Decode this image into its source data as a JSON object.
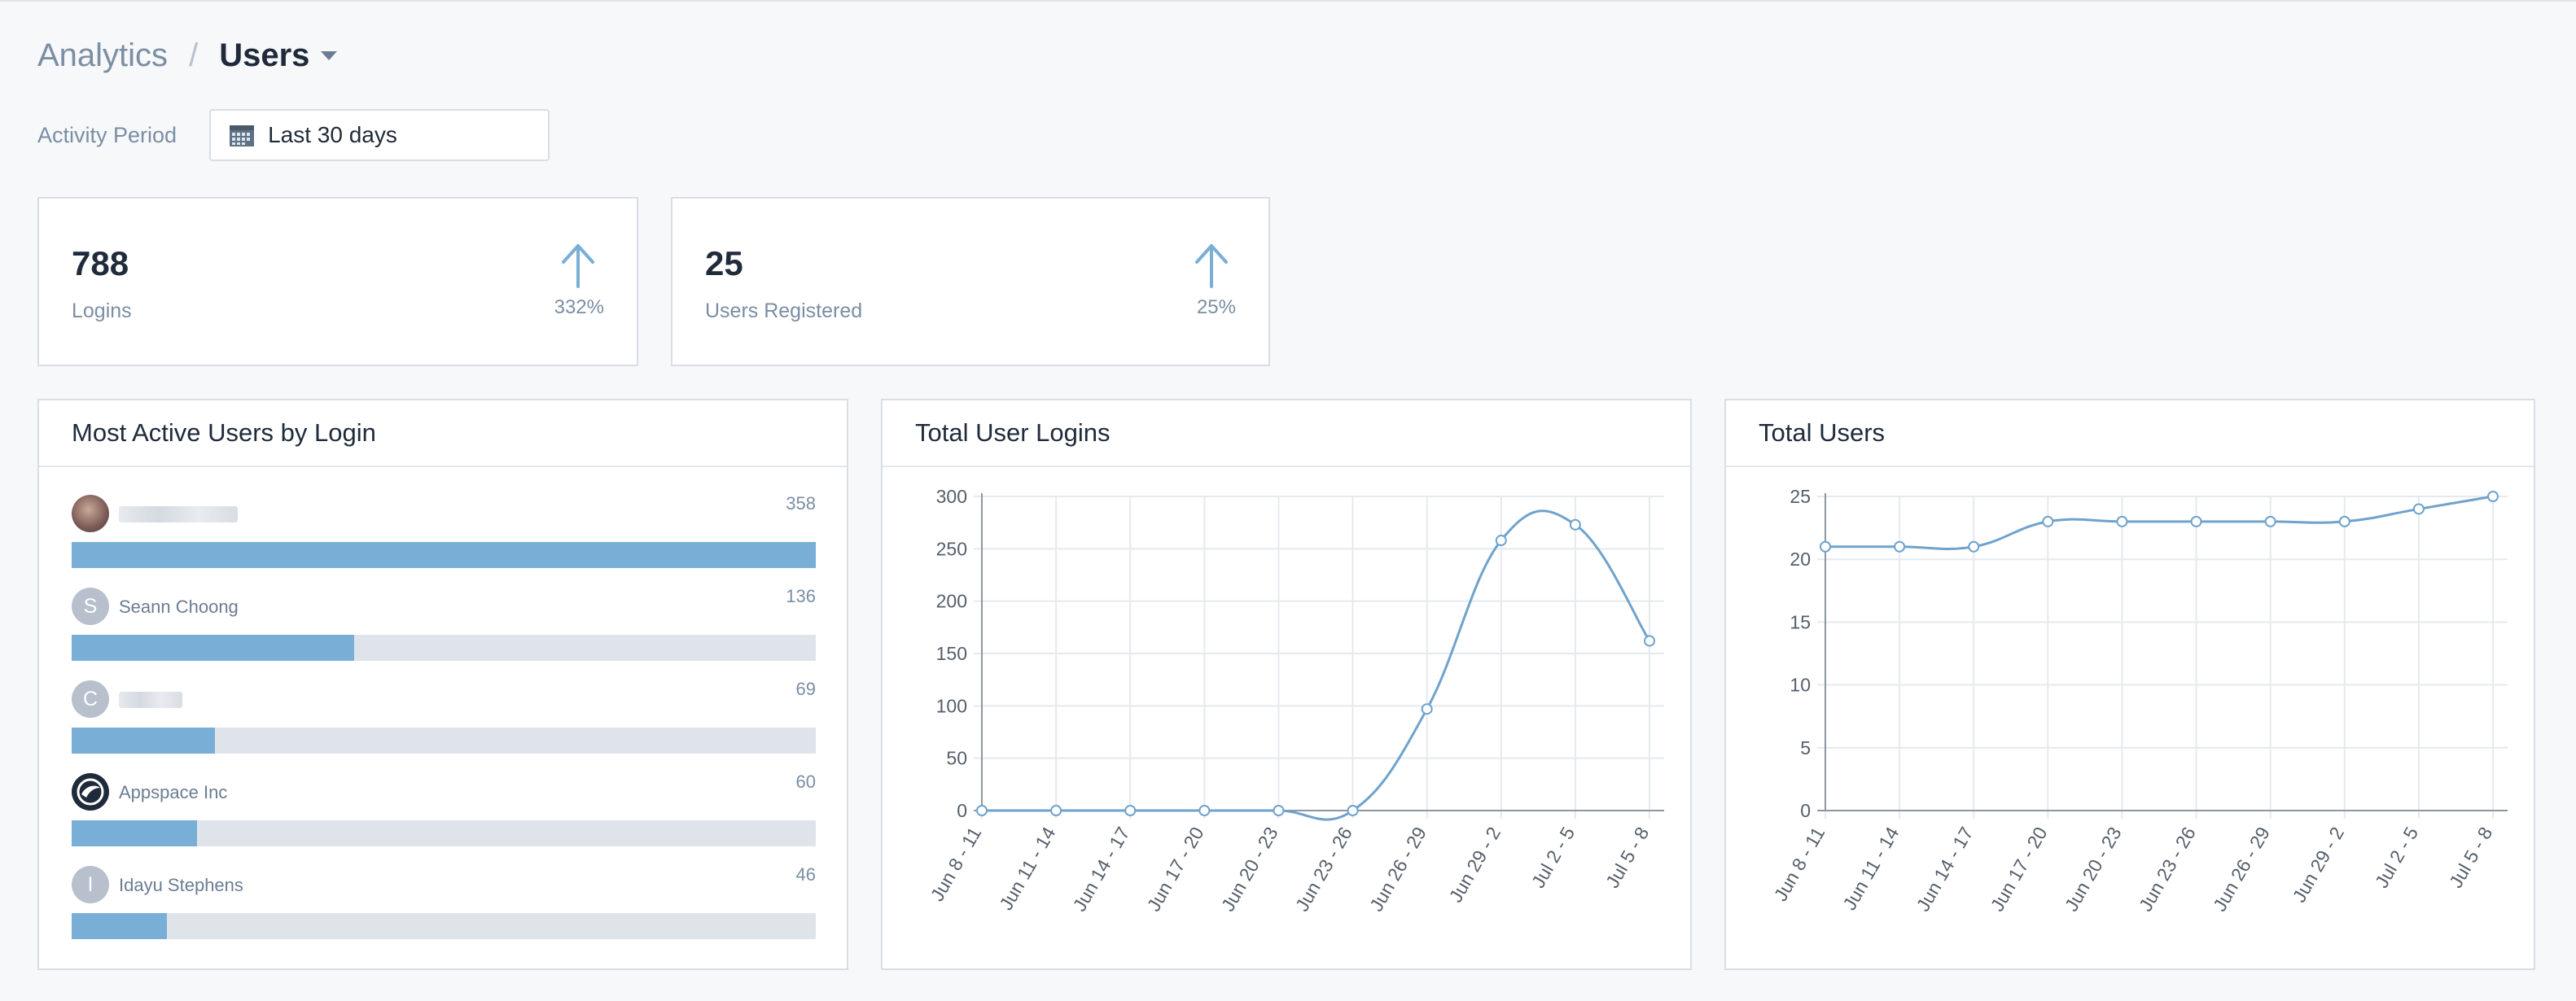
{
  "breadcrumb": {
    "root": "Analytics",
    "separator": "/",
    "current": "Users"
  },
  "period": {
    "label": "Activity Period",
    "value": "Last 30 days"
  },
  "stats": [
    {
      "value": "788",
      "label": "Logins",
      "change": "332%"
    },
    {
      "value": "25",
      "label": "Users Registered",
      "change": "25%"
    }
  ],
  "most_active": {
    "title": "Most Active Users by Login",
    "users": [
      {
        "initial": "",
        "name": "",
        "count": "358",
        "fraction": 1.0
      },
      {
        "initial": "S",
        "name": "Seann Choong",
        "count": "136",
        "fraction": 0.38
      },
      {
        "initial": "C",
        "name": "",
        "count": "69",
        "fraction": 0.193
      },
      {
        "initial": "",
        "name": "Appspace Inc",
        "count": "60",
        "fraction": 0.168
      },
      {
        "initial": "I",
        "name": "Idayu Stephens",
        "count": "46",
        "fraction": 0.128
      }
    ]
  },
  "colors": {
    "accent": "#79aed6",
    "line": "#6fa3cc",
    "track": "#dfe4ea",
    "text_muted": "#7b8ea3"
  },
  "chart_data": [
    {
      "type": "line",
      "title": "Total User Logins",
      "categories": [
        "Jun 8 - 11",
        "Jun 11 - 14",
        "Jun 14 - 17",
        "Jun 17 - 20",
        "Jun 20 - 23",
        "Jun 23 - 26",
        "Jun 26 - 29",
        "Jun 29 - 2",
        "Jul 2 - 5",
        "Jul 5 - 8"
      ],
      "values": [
        0,
        0,
        0,
        0,
        0,
        0,
        97,
        258,
        273,
        162
      ],
      "ylim": [
        0,
        300
      ],
      "yticks": [
        0,
        50,
        100,
        150,
        200,
        250,
        300
      ],
      "grid": true,
      "legend": "none"
    },
    {
      "type": "line",
      "title": "Total Users",
      "categories": [
        "Jun 8 - 11",
        "Jun 11 - 14",
        "Jun 14 - 17",
        "Jun 17 - 20",
        "Jun 20 - 23",
        "Jun 23 - 26",
        "Jun 26 - 29",
        "Jun 29 - 2",
        "Jul 2 - 5",
        "Jul 5 - 8"
      ],
      "values": [
        21,
        21,
        21,
        23,
        23,
        23,
        23,
        23,
        24,
        25
      ],
      "ylim": [
        0,
        25
      ],
      "yticks": [
        0,
        5,
        10,
        15,
        20,
        25
      ],
      "grid": true,
      "legend": "none"
    }
  ]
}
